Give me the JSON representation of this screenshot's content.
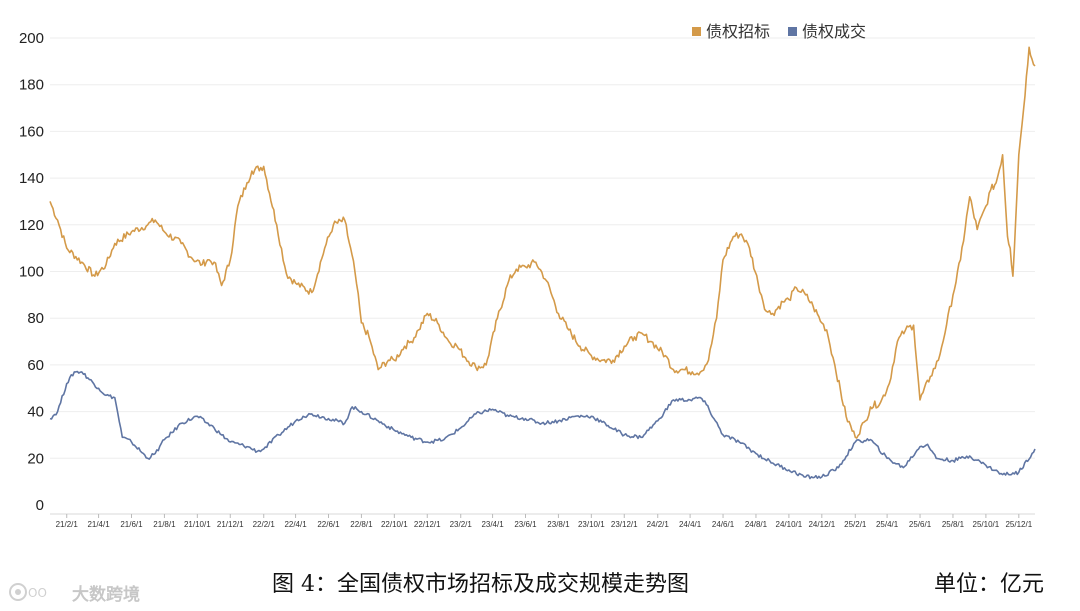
{
  "chart_data": {
    "type": "line",
    "ylim": [
      0,
      200
    ],
    "yticks": [
      0,
      20,
      40,
      60,
      80,
      100,
      120,
      140,
      160,
      180,
      200
    ],
    "xlim": [
      "2021-01-01",
      "2025-12-31"
    ],
    "xticks": [
      "21/2/1",
      "21/4/1",
      "21/6/1",
      "21/8/1",
      "21/10/1",
      "21/12/1",
      "22/2/1",
      "22/4/1",
      "22/6/1",
      "22/8/1",
      "22/10/1",
      "22/12/1",
      "23/2/1",
      "23/4/1",
      "23/6/1",
      "23/8/1",
      "23/10/1",
      "23/12/1",
      "24/2/1",
      "24/4/1",
      "24/6/1",
      "24/8/1",
      "24/10/1",
      "24/12/1",
      "25/2/1",
      "25/4/1",
      "25/6/1",
      "25/8/1",
      "25/10/1",
      "25/12/1"
    ],
    "legend_position": "top-right",
    "grid": true,
    "series": [
      {
        "name": "债权招标",
        "color": "#d49a49",
        "x": [
          "2021-01-01",
          "2021-01-15",
          "2021-02-01",
          "2021-03-01",
          "2021-03-25",
          "2021-04-15",
          "2021-05-01",
          "2021-06-01",
          "2021-07-01",
          "2021-07-15",
          "2021-08-01",
          "2021-09-01",
          "2021-09-20",
          "2021-10-10",
          "2021-10-20",
          "2021-11-01",
          "2021-11-15",
          "2021-12-01",
          "2021-12-15",
          "2022-01-01",
          "2022-01-10",
          "2022-02-01",
          "2022-02-25",
          "2022-03-15",
          "2022-04-01",
          "2022-05-01",
          "2022-05-25",
          "2022-06-10",
          "2022-07-01",
          "2022-07-20",
          "2022-08-01",
          "2022-08-15",
          "2022-09-01",
          "2022-09-20",
          "2022-10-01",
          "2022-10-20",
          "2022-11-01",
          "2022-11-15",
          "2022-12-01",
          "2022-12-20",
          "2023-01-10",
          "2023-01-25",
          "2023-02-10",
          "2023-03-01",
          "2023-03-20",
          "2023-04-10",
          "2023-05-01",
          "2023-05-15",
          "2023-06-01",
          "2023-06-20",
          "2023-07-10",
          "2023-08-01",
          "2023-08-20",
          "2023-09-10",
          "2023-10-01",
          "2023-10-20",
          "2023-11-10",
          "2023-12-01",
          "2023-12-20",
          "2024-01-05",
          "2024-01-20",
          "2024-02-15",
          "2024-03-01",
          "2024-03-20",
          "2024-04-05",
          "2024-04-20",
          "2024-05-05",
          "2024-05-20",
          "2024-06-01",
          "2024-06-20",
          "2024-07-05",
          "2024-07-20",
          "2024-08-05",
          "2024-08-20",
          "2024-09-01",
          "2024-09-20",
          "2024-10-01",
          "2024-10-15",
          "2024-11-01",
          "2024-11-15",
          "2024-12-01",
          "2024-12-10",
          "2024-12-25",
          "2025-01-15",
          "2025-02-01",
          "2025-02-20",
          "2025-03-01",
          "2025-03-20",
          "2025-04-05",
          "2025-04-20",
          "2025-05-05",
          "2025-05-20",
          "2025-06-01",
          "2025-06-20",
          "2025-07-05",
          "2025-07-20",
          "2025-08-01",
          "2025-08-15",
          "2025-09-01",
          "2025-09-15",
          "2025-10-01",
          "2025-10-10",
          "2025-10-20",
          "2025-11-01",
          "2025-11-10",
          "2025-11-15",
          "2025-11-20",
          "2025-12-01",
          "2025-12-10",
          "2025-12-20",
          "2025-12-31"
        ],
        "values": [
          130,
          122,
          110,
          104,
          98,
          103,
          112,
          117,
          120,
          122,
          117,
          112,
          106,
          103,
          105,
          104,
          94,
          105,
          128,
          138,
          143,
          145,
          120,
          99,
          95,
          91,
          110,
          120,
          122,
          100,
          78,
          72,
          58,
          62,
          62,
          68,
          70,
          75,
          82,
          78,
          70,
          68,
          63,
          59,
          60,
          80,
          96,
          101,
          102,
          104,
          96,
          82,
          75,
          68,
          64,
          62,
          62,
          68,
          72,
          73,
          70,
          64,
          58,
          58,
          57,
          57,
          62,
          80,
          105,
          115,
          116,
          110,
          95,
          83,
          82,
          87,
          88,
          93,
          90,
          85,
          78,
          75,
          60,
          38,
          29,
          36,
          42,
          44,
          52,
          70,
          75,
          77,
          45,
          55,
          62,
          77,
          90,
          105,
          132,
          118,
          128,
          135,
          138,
          150,
          115,
          110,
          98,
          150,
          170,
          196,
          188
        ]
      },
      {
        "name": "债权成交",
        "color": "#5f75a3",
        "x": [
          "2021-01-01",
          "2021-01-15",
          "2021-02-01",
          "2021-02-15",
          "2021-03-01",
          "2021-04-01",
          "2021-04-15",
          "2021-05-01",
          "2021-05-15",
          "2021-06-01",
          "2021-07-01",
          "2021-07-15",
          "2021-08-01",
          "2021-08-15",
          "2021-09-01",
          "2021-10-01",
          "2021-11-01",
          "2021-11-15",
          "2021-12-01",
          "2022-01-01",
          "2022-01-20",
          "2022-02-01",
          "2022-03-01",
          "2022-04-01",
          "2022-04-15",
          "2022-05-01",
          "2022-06-01",
          "2022-07-01",
          "2022-07-15",
          "2022-08-01",
          "2022-09-01",
          "2022-10-01",
          "2022-11-01",
          "2022-12-01",
          "2023-01-01",
          "2023-02-01",
          "2023-03-01",
          "2023-04-01",
          "2023-05-01",
          "2023-06-01",
          "2023-07-01",
          "2023-08-01",
          "2023-09-01",
          "2023-10-01",
          "2023-11-01",
          "2023-12-01",
          "2024-01-01",
          "2024-02-01",
          "2024-03-01",
          "2024-04-01",
          "2024-04-20",
          "2024-05-01",
          "2024-06-01",
          "2024-07-01",
          "2024-08-01",
          "2024-09-01",
          "2024-10-01",
          "2024-11-01",
          "2024-12-01",
          "2025-01-01",
          "2025-02-01",
          "2025-03-01",
          "2025-04-01",
          "2025-05-01",
          "2025-06-01",
          "2025-06-15",
          "2025-07-01",
          "2025-08-01",
          "2025-09-01",
          "2025-10-01",
          "2025-11-01",
          "2025-12-01",
          "2025-12-31"
        ],
        "values": [
          37,
          40,
          52,
          57,
          57,
          50,
          47,
          46,
          29,
          27,
          20,
          22,
          28,
          31,
          35,
          38,
          33,
          30,
          27,
          25,
          23,
          24,
          30,
          36,
          38,
          39,
          37,
          35,
          42,
          40,
          36,
          32,
          29,
          27,
          28,
          33,
          39,
          41,
          38,
          37,
          35,
          36,
          38,
          38,
          34,
          30,
          29,
          36,
          45,
          45,
          46,
          43,
          30,
          27,
          22,
          18,
          15,
          12,
          12,
          16,
          27,
          28,
          20,
          16,
          25,
          26,
          20,
          19,
          21,
          17,
          13,
          14,
          24
        ]
      }
    ]
  },
  "caption": "图 4：全国债权市场招标及成交规模走势图",
  "unit": "单位：亿元",
  "watermark": {
    "text": "大数跨境"
  }
}
